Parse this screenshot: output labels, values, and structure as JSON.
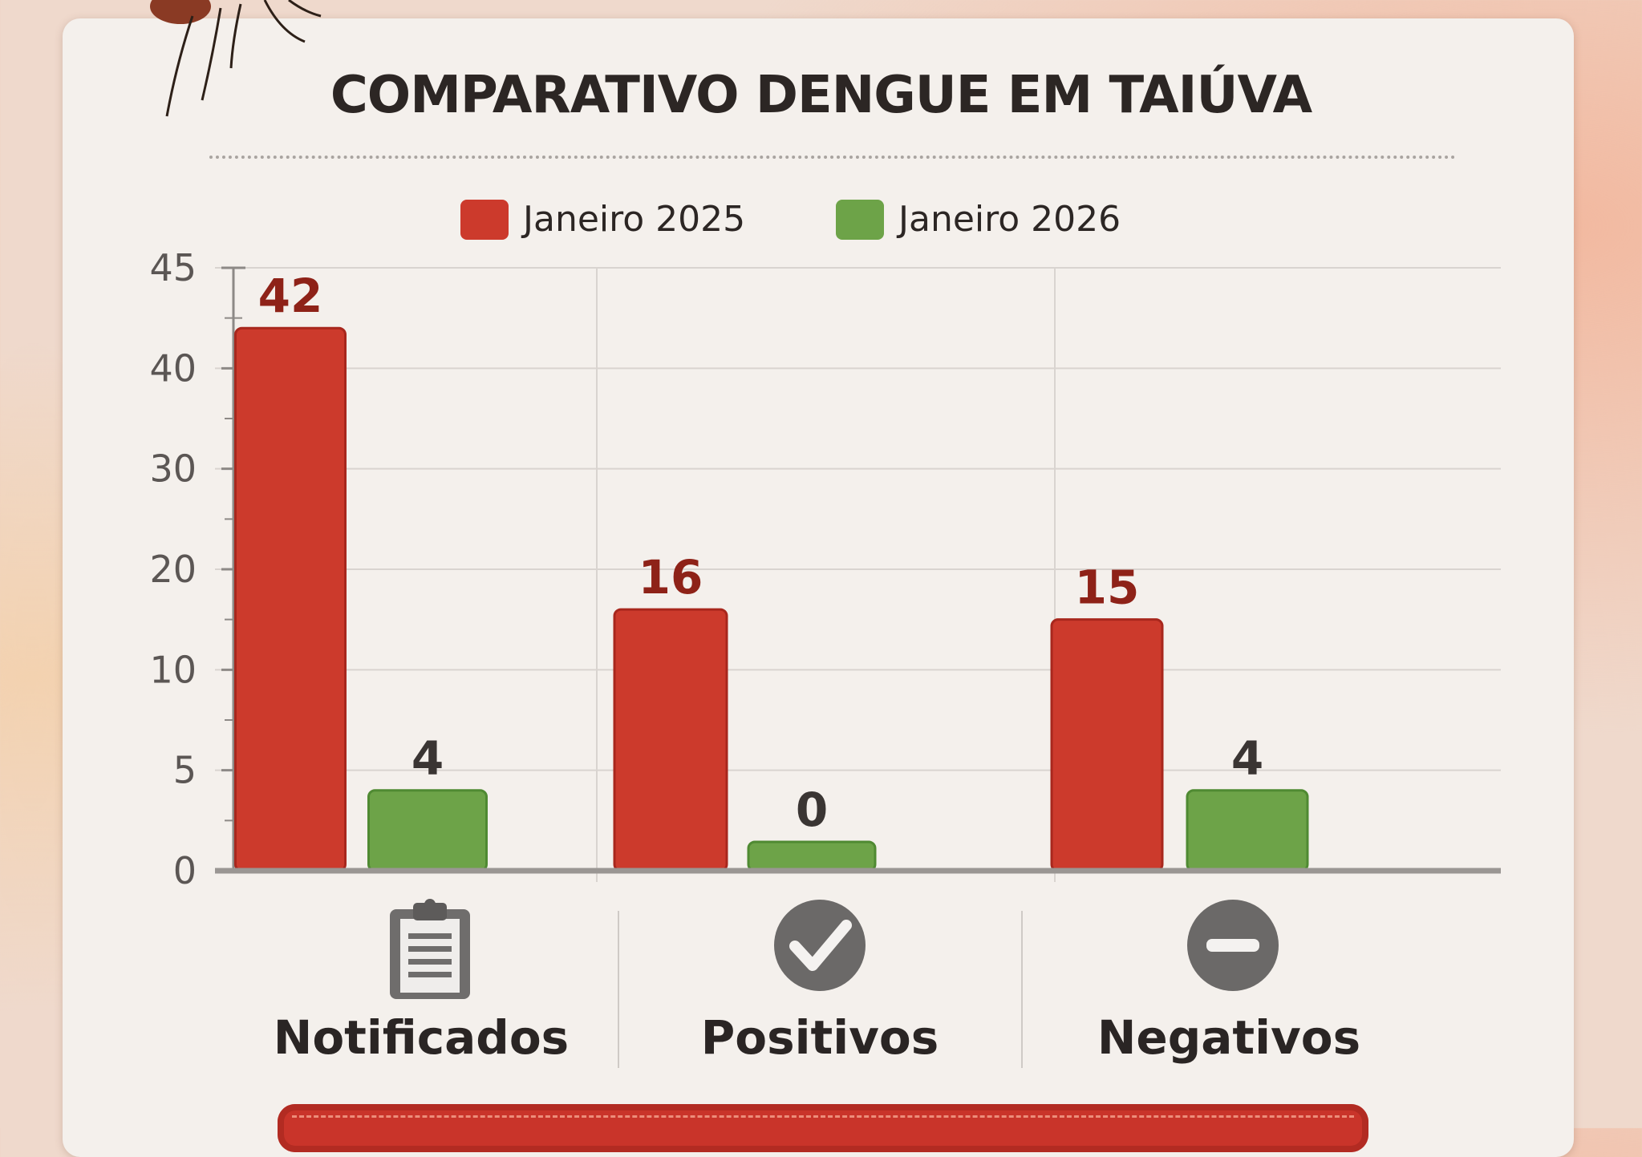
{
  "title": "COMPARATIVO DENGUE EM TAIÚVA",
  "legend": [
    {
      "label": "Janeiro 2025",
      "color": "#cc3a2c"
    },
    {
      "label": "Janeiro 2026",
      "color": "#6da348"
    }
  ],
  "categories": [
    {
      "label": "Notificados",
      "icon": "clipboard-icon"
    },
    {
      "label": "Positivos",
      "icon": "check-circle-icon"
    },
    {
      "label": "Negativos",
      "icon": "minus-circle-icon"
    }
  ],
  "chart_data": {
    "type": "bar",
    "title": "COMPARATIVO DENGUE EM TAIÚVA",
    "categories": [
      "Notificados",
      "Positivos",
      "Negativos"
    ],
    "series": [
      {
        "name": "Janeiro 2025",
        "values": [
          42,
          16,
          15
        ],
        "color": "#cc3a2c"
      },
      {
        "name": "Janeiro 2026",
        "values": [
          4,
          0,
          4
        ],
        "color": "#6da348"
      }
    ],
    "y_ticks": [
      0,
      5,
      10,
      20,
      30,
      40,
      45
    ],
    "ylim": [
      0,
      45
    ],
    "grid": true,
    "legend_position": "top"
  }
}
